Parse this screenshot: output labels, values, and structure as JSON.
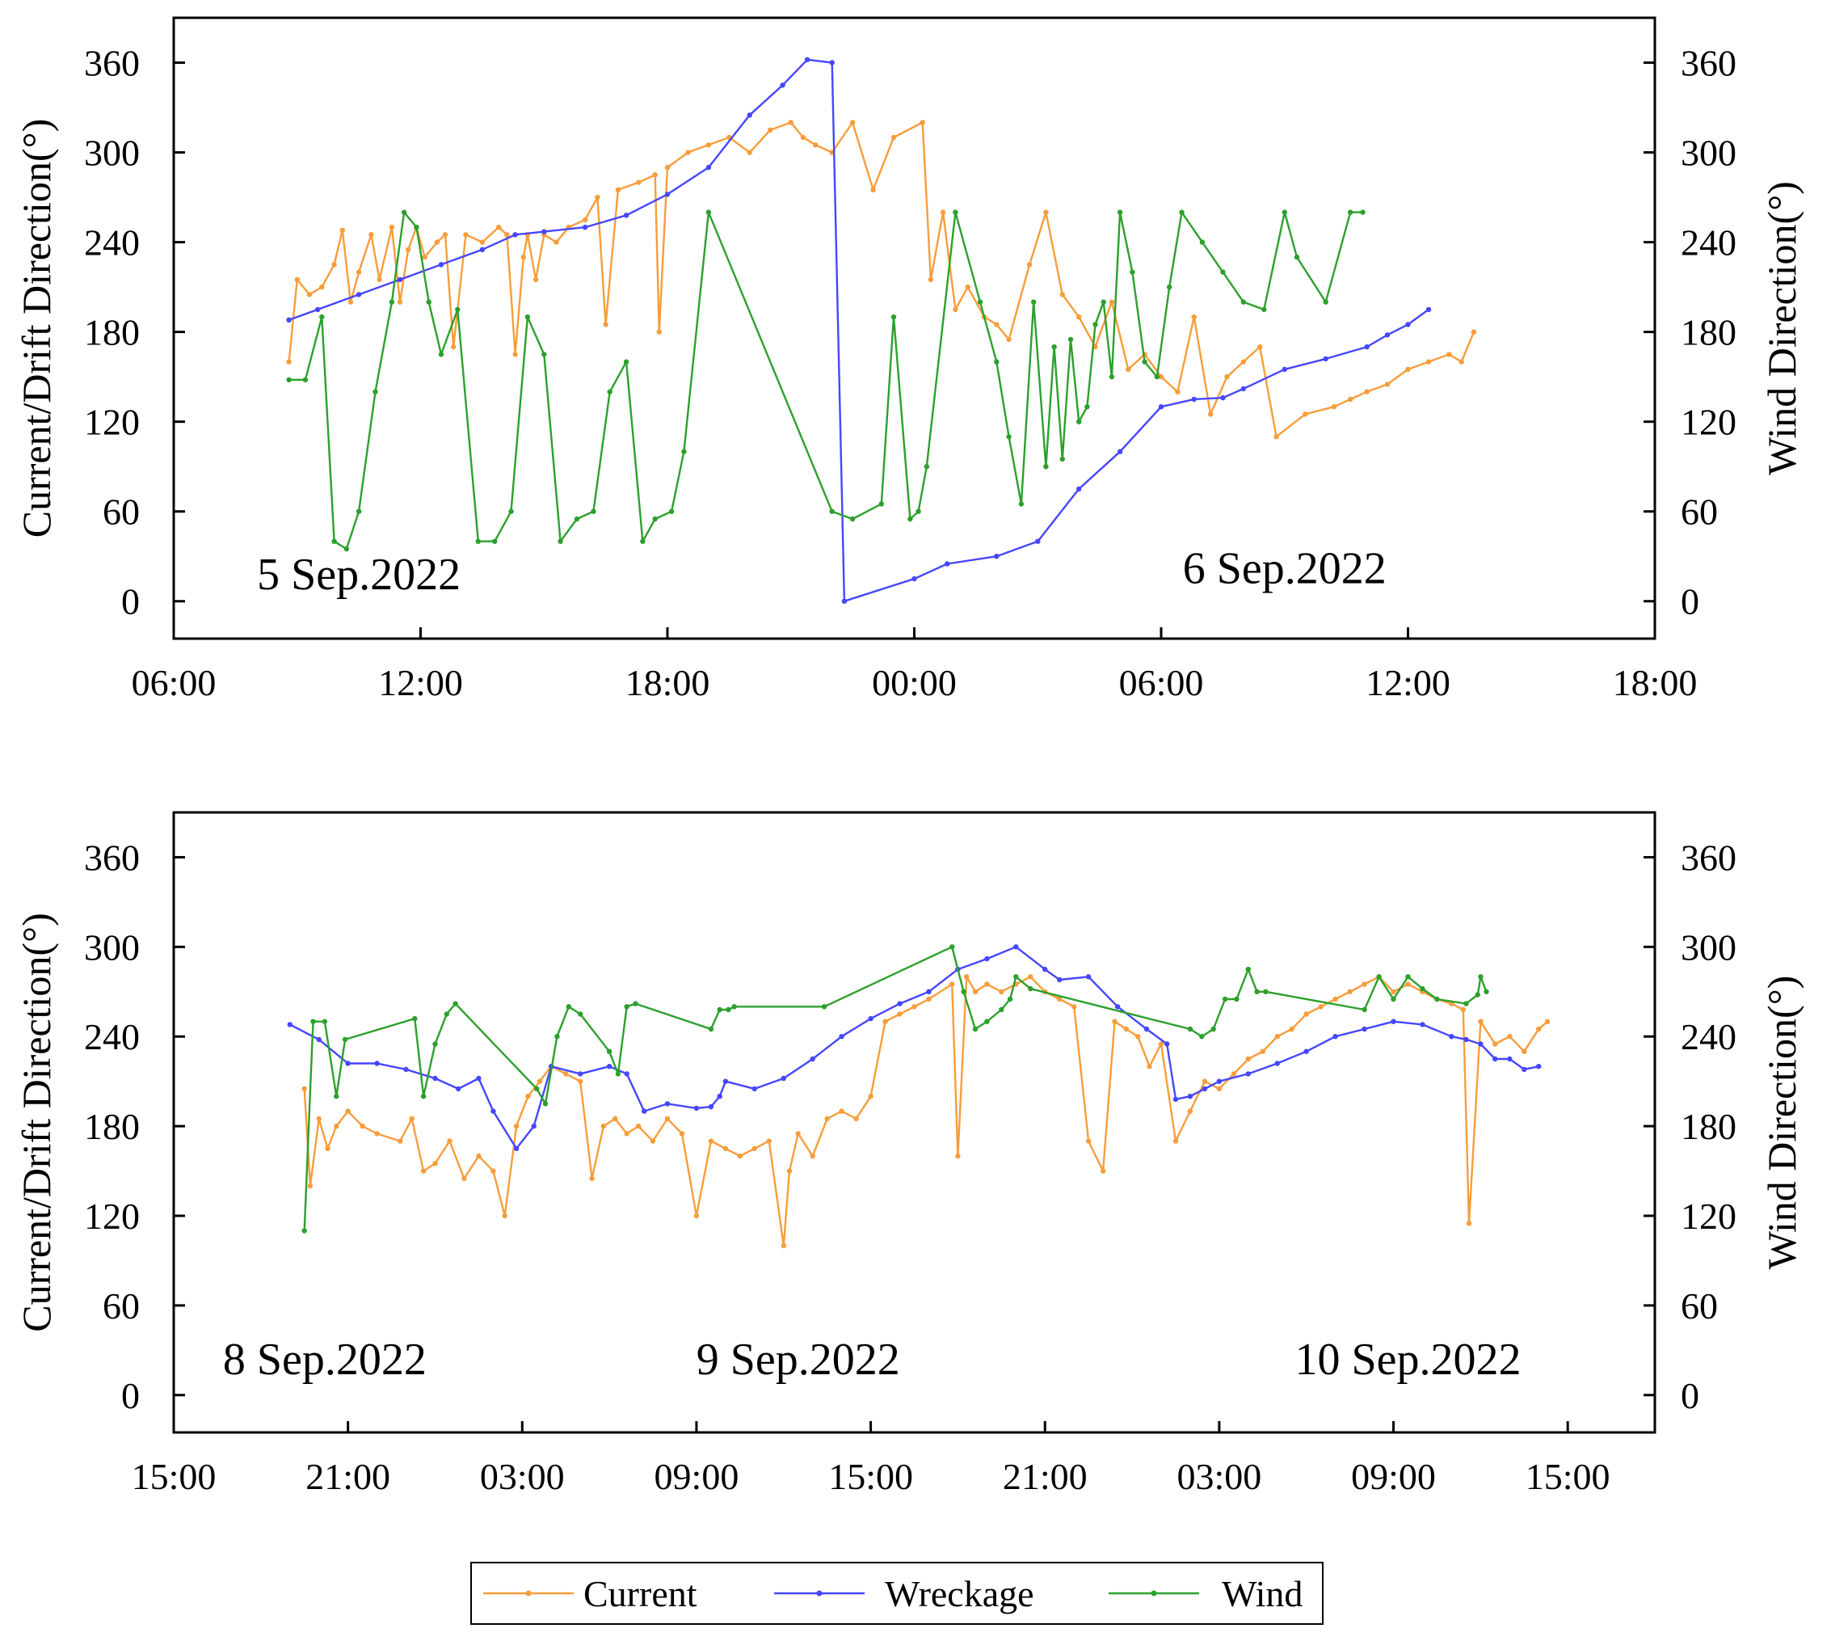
{
  "chart_data": [
    {
      "type": "line",
      "panel": "top",
      "ylabel_left": "Current/Drift Direction(°)",
      "ylabel_right": "Wind Direction(°)",
      "ylim": [
        -25,
        390
      ],
      "yticks": [
        0,
        60,
        120,
        180,
        240,
        300,
        360
      ],
      "xlim": [
        6,
        42
      ],
      "xtick_values": [
        6,
        12,
        18,
        24,
        30,
        36,
        42
      ],
      "xtick_labels": [
        "06:00",
        "12:00",
        "18:00",
        "00:00",
        "06:00",
        "12:00",
        "18:00"
      ],
      "annotations": [
        {
          "text": "5 Sep.2022",
          "x": 10.5,
          "y": 8
        },
        {
          "text": "6 Sep.2022",
          "x": 33.0,
          "y": 12
        }
      ],
      "series": [
        {
          "name": "Current",
          "color": "#f79d3b",
          "x": [
            8.8,
            9.0,
            9.3,
            9.6,
            9.9,
            10.1,
            10.3,
            10.5,
            10.8,
            11.0,
            11.3,
            11.5,
            11.7,
            11.9,
            12.1,
            12.4,
            12.6,
            12.8,
            13.1,
            13.5,
            13.9,
            14.1,
            14.3,
            14.5,
            14.6,
            14.8,
            15.0,
            15.3,
            15.6,
            16.0,
            16.3,
            16.5,
            16.8,
            17.3,
            17.7,
            17.8,
            18.0,
            18.5,
            19.0,
            19.5,
            20.0,
            20.5,
            21.0,
            21.3,
            21.6,
            22.0,
            22.5,
            23.0,
            23.5,
            24.2,
            24.4,
            24.7,
            25.0,
            25.3,
            25.7,
            26.0,
            26.3,
            26.8,
            27.2,
            27.6,
            28.0,
            28.4,
            28.8,
            29.2,
            29.6,
            30.0,
            30.4,
            30.8,
            31.2,
            31.6,
            32.0,
            32.4,
            32.8,
            33.5,
            34.2,
            34.6,
            35.0,
            35.5,
            36.0,
            36.5,
            37.0,
            37.3,
            37.6
          ],
          "y": [
            160,
            215,
            205,
            210,
            225,
            248,
            200,
            220,
            245,
            215,
            250,
            200,
            235,
            250,
            230,
            240,
            245,
            170,
            245,
            240,
            250,
            245,
            165,
            230,
            245,
            215,
            245,
            240,
            250,
            255,
            270,
            185,
            275,
            280,
            285,
            180,
            290,
            300,
            305,
            310,
            300,
            315,
            320,
            310,
            305,
            300,
            320,
            275,
            310,
            320,
            215,
            260,
            195,
            210,
            190,
            185,
            175,
            225,
            260,
            205,
            190,
            170,
            200,
            155,
            165,
            150,
            140,
            190,
            125,
            150,
            160,
            170,
            110,
            125,
            130,
            135,
            140,
            145,
            155,
            160,
            165,
            160,
            180
          ]
        },
        {
          "name": "Wreckage",
          "color": "#4646ff",
          "x": [
            8.8,
            9.5,
            10.5,
            11.5,
            12.5,
            13.5,
            14.3,
            15.0,
            16.0,
            17.0,
            18.0,
            19.0,
            20.0,
            20.8,
            21.4,
            22.0,
            22.3,
            24.0,
            24.8,
            26.0,
            27.0,
            28.0,
            29.0,
            30.0,
            30.8,
            31.5,
            32.0,
            33.0,
            34.0,
            35.0,
            35.5,
            36.0,
            36.5
          ],
          "y": [
            188,
            195,
            205,
            215,
            225,
            235,
            245,
            247,
            250,
            258,
            272,
            290,
            325,
            345,
            362,
            360,
            0,
            15,
            25,
            30,
            40,
            75,
            100,
            130,
            135,
            136,
            142,
            155,
            162,
            170,
            178,
            185,
            195
          ]
        },
        {
          "name": "Wind",
          "color": "#2ca02c",
          "x": [
            8.8,
            9.2,
            9.6,
            9.9,
            10.2,
            10.5,
            10.9,
            11.3,
            11.6,
            11.9,
            12.2,
            12.5,
            12.9,
            13.4,
            13.8,
            14.2,
            14.6,
            15.0,
            15.4,
            15.8,
            16.2,
            16.6,
            17.0,
            17.4,
            17.7,
            18.1,
            18.4,
            19.0,
            22.0,
            22.5,
            23.2,
            23.5,
            23.9,
            24.1,
            24.3,
            25.0,
            25.6,
            26.0,
            26.3,
            26.6,
            26.9,
            27.2,
            27.4,
            27.6,
            27.8,
            28.0,
            28.2,
            28.4,
            28.6,
            28.8,
            29.0,
            29.3,
            29.6,
            29.9,
            30.2,
            30.5,
            31.0,
            31.5,
            32.0,
            32.5,
            33.0,
            33.3,
            34.0,
            34.6,
            34.9
          ],
          "y": [
            148,
            148,
            190,
            40,
            35,
            60,
            140,
            200,
            260,
            250,
            200,
            165,
            195,
            40,
            40,
            60,
            190,
            165,
            40,
            55,
            60,
            140,
            160,
            40,
            55,
            60,
            100,
            260,
            60,
            55,
            65,
            190,
            55,
            60,
            90,
            260,
            200,
            160,
            110,
            65,
            200,
            90,
            170,
            95,
            175,
            120,
            130,
            185,
            200,
            150,
            260,
            220,
            160,
            150,
            210,
            260,
            240,
            220,
            200,
            195,
            260,
            230,
            200,
            260,
            260
          ]
        }
      ]
    },
    {
      "type": "line",
      "panel": "bottom",
      "ylabel_left": "Current/Drift Direction(°)",
      "ylabel_right": "Wind Direction(°)",
      "ylim": [
        -25,
        390
      ],
      "yticks": [
        0,
        60,
        120,
        180,
        240,
        300,
        360
      ],
      "xlim": [
        15,
        66
      ],
      "xtick_values": [
        15,
        21,
        27,
        33,
        39,
        45,
        51,
        57,
        63
      ],
      "xtick_labels": [
        "15:00",
        "21:00",
        "03:00",
        "09:00",
        "15:00",
        "21:00",
        "03:00",
        "09:00",
        "15:00"
      ],
      "annotations": [
        {
          "text": "8 Sep.2022",
          "x": 20.2,
          "y": 14
        },
        {
          "text": "9 Sep.2022",
          "x": 36.5,
          "y": 14
        },
        {
          "text": "10 Sep.2022",
          "x": 57.5,
          "y": 14
        }
      ],
      "series": [
        {
          "name": "Current",
          "color": "#f79d3b",
          "x": [
            19.5,
            19.7,
            20.0,
            20.3,
            20.6,
            21.0,
            21.5,
            22.0,
            22.8,
            23.2,
            23.6,
            24.0,
            24.5,
            25.0,
            25.5,
            26.0,
            26.4,
            26.8,
            27.2,
            27.6,
            28.0,
            28.5,
            29.0,
            29.4,
            29.8,
            30.2,
            30.6,
            31.0,
            31.5,
            32.0,
            32.5,
            33.0,
            33.5,
            34.0,
            34.5,
            35.0,
            35.5,
            36.0,
            36.2,
            36.5,
            37.0,
            37.5,
            38.0,
            38.5,
            39.0,
            39.5,
            40.0,
            40.5,
            41.0,
            41.8,
            42.0,
            42.3,
            42.6,
            43.0,
            43.5,
            44.0,
            44.5,
            45.0,
            45.5,
            46.0,
            46.5,
            47.0,
            47.4,
            47.8,
            48.2,
            48.6,
            49.0,
            49.5,
            50.0,
            50.5,
            51.0,
            51.5,
            52.0,
            52.5,
            53.0,
            53.5,
            54.0,
            54.5,
            55.0,
            55.5,
            56.0,
            56.5,
            57.0,
            57.5,
            58.0,
            58.5,
            59.0,
            59.4,
            59.6,
            60.0,
            60.5,
            61.0,
            61.5,
            62.0,
            62.3
          ],
          "y": [
            205,
            140,
            185,
            165,
            180,
            190,
            180,
            175,
            170,
            185,
            150,
            155,
            170,
            145,
            160,
            150,
            120,
            180,
            200,
            210,
            220,
            215,
            210,
            145,
            180,
            185,
            175,
            180,
            170,
            185,
            175,
            120,
            170,
            165,
            160,
            165,
            170,
            100,
            150,
            175,
            160,
            185,
            190,
            185,
            200,
            250,
            255,
            260,
            265,
            275,
            160,
            280,
            270,
            275,
            270,
            275,
            280,
            270,
            265,
            260,
            170,
            150,
            250,
            245,
            240,
            220,
            235,
            170,
            190,
            210,
            205,
            215,
            225,
            230,
            240,
            245,
            255,
            260,
            265,
            270,
            275,
            280,
            270,
            275,
            270,
            265,
            262,
            258,
            115,
            250,
            235,
            240,
            230,
            245,
            250
          ]
        },
        {
          "name": "Wreckage",
          "color": "#4646ff",
          "x": [
            19.0,
            20.0,
            21.0,
            22.0,
            23.0,
            24.0,
            24.8,
            25.5,
            26.0,
            26.8,
            27.4,
            28.0,
            29.0,
            30.0,
            30.6,
            31.2,
            32.0,
            33.0,
            33.5,
            33.8,
            34.0,
            35.0,
            36.0,
            37.0,
            38.0,
            39.0,
            40.0,
            41.0,
            42.0,
            43.0,
            44.0,
            45.0,
            45.5,
            46.5,
            47.5,
            48.5,
            49.2,
            49.5,
            50.0,
            50.5,
            51.0,
            52.0,
            53.0,
            54.0,
            55.0,
            56.0,
            57.0,
            58.0,
            59.0,
            59.5,
            60.0,
            60.5,
            61.0,
            61.5,
            62.0
          ],
          "y": [
            248,
            238,
            222,
            222,
            218,
            212,
            205,
            212,
            190,
            165,
            180,
            220,
            215,
            220,
            215,
            190,
            195,
            192,
            193,
            200,
            210,
            205,
            212,
            225,
            240,
            252,
            262,
            270,
            285,
            292,
            300,
            285,
            278,
            280,
            260,
            245,
            235,
            198,
            200,
            205,
            210,
            215,
            222,
            230,
            240,
            245,
            250,
            248,
            240,
            238,
            235,
            225,
            225,
            218,
            220
          ]
        },
        {
          "name": "Wind",
          "color": "#2ca02c",
          "x": [
            19.5,
            19.8,
            20.2,
            20.6,
            20.9,
            23.3,
            23.6,
            24.0,
            24.4,
            24.7,
            27.5,
            27.8,
            28.2,
            28.6,
            29.0,
            30.0,
            30.3,
            30.6,
            30.9,
            33.5,
            33.8,
            34.1,
            34.3,
            37.4,
            41.8,
            42.2,
            42.6,
            43.0,
            43.5,
            43.8,
            44.0,
            44.5,
            50.0,
            50.4,
            50.8,
            51.2,
            51.6,
            52.0,
            52.3,
            52.6,
            56.0,
            56.5,
            57.0,
            57.5,
            58.0,
            58.5,
            59.5,
            59.9,
            60.0,
            60.2
          ],
          "y": [
            110,
            250,
            250,
            200,
            238,
            252,
            200,
            235,
            255,
            262,
            205,
            195,
            240,
            260,
            255,
            230,
            215,
            260,
            262,
            245,
            258,
            258,
            260,
            260,
            300,
            270,
            245,
            250,
            258,
            265,
            280,
            272,
            245,
            240,
            245,
            265,
            265,
            285,
            270,
            270,
            258,
            280,
            265,
            280,
            272,
            265,
            262,
            268,
            280,
            270
          ]
        }
      ]
    }
  ],
  "legend": {
    "entries": [
      "Current",
      "Wreckage",
      "Wind"
    ],
    "placement": "bottom-center"
  }
}
